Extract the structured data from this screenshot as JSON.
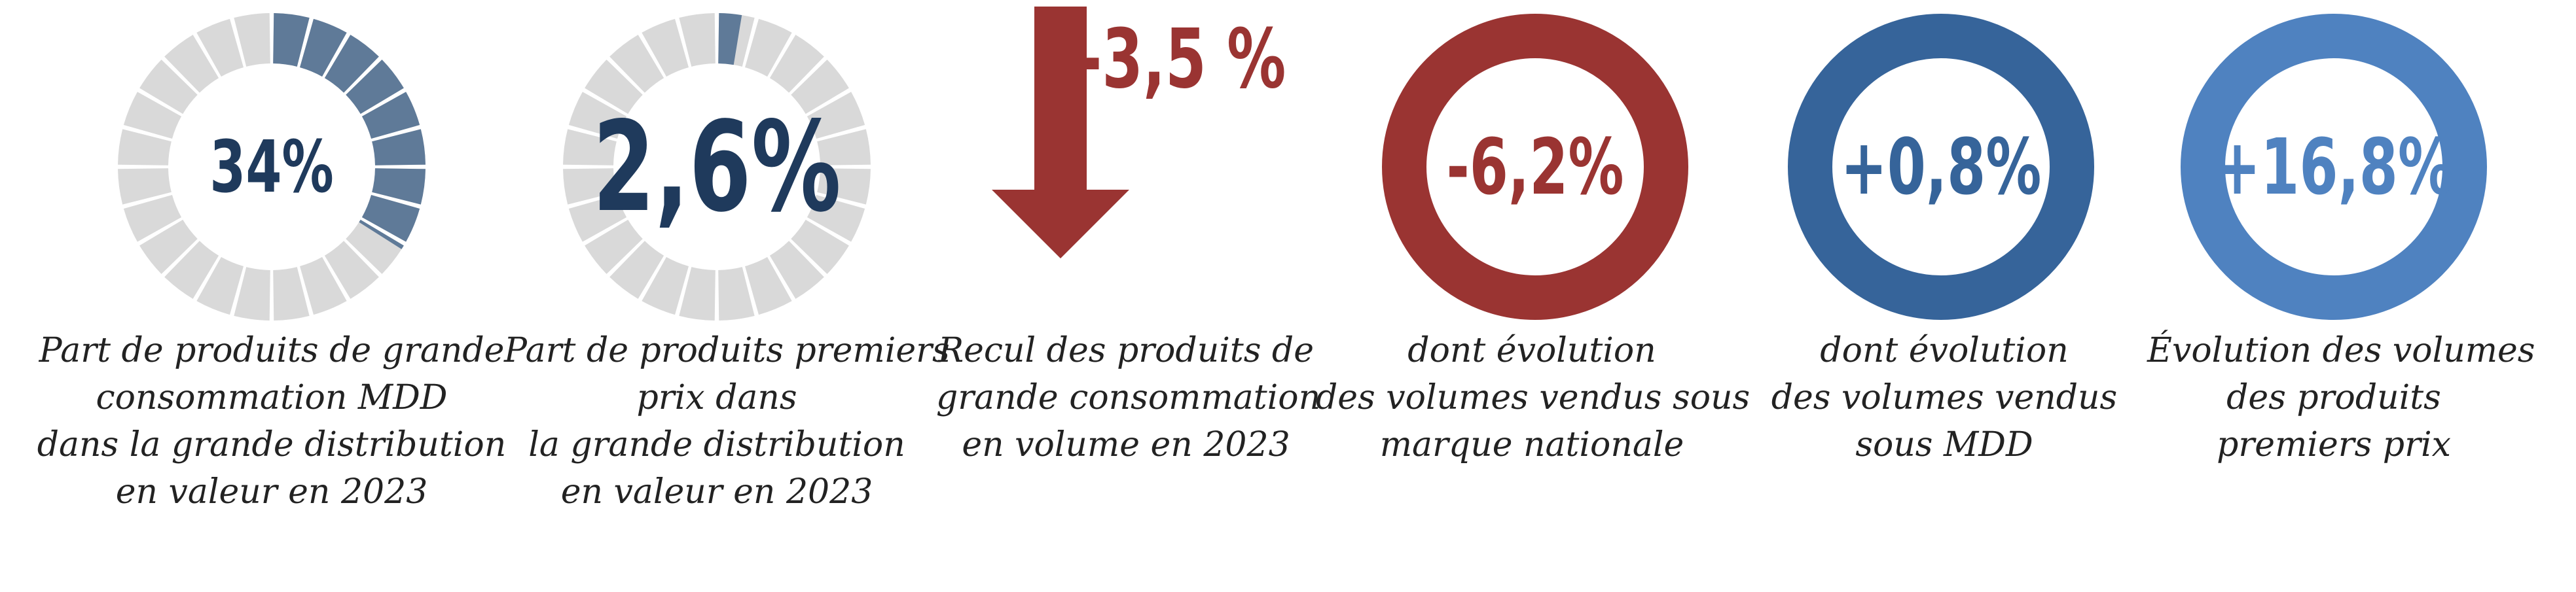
{
  "chart_data": [
    {
      "type": "donut-gauge",
      "value": "34%",
      "fraction": 0.34,
      "caption": [
        "Part de produits de grande",
        "consommation MDD",
        "dans la grande distribution",
        "en valeur en 2023"
      ]
    },
    {
      "type": "donut-gauge",
      "value": "2,6%",
      "fraction": 0.026,
      "caption": [
        "Part de produits premiers",
        "prix dans",
        "la grande distribution",
        "en valeur en 2023"
      ]
    },
    {
      "type": "arrow",
      "value": "-3,5 %",
      "caption": [
        "Recul des produits de",
        "grande consommation",
        "en volume en 2023"
      ]
    },
    {
      "type": "ring",
      "value": "-6,2%",
      "caption": [
        "dont évolution",
        "des volumes vendus sous",
        "marque nationale"
      ]
    },
    {
      "type": "ring",
      "value": "+0,8%",
      "caption": [
        "dont évolution",
        "des volumes vendus",
        "sous MDD"
      ]
    },
    {
      "type": "ring",
      "value": "+16,8%",
      "caption": [
        "Évolution des volumes",
        "des produits",
        "premiers prix"
      ]
    }
  ],
  "colors": {
    "gauge_fill": "#5f7a98",
    "gauge_empty": "#d9d9d9",
    "gauge_text": "#1f3a5c",
    "arrow": "#9a3432",
    "red_ring": "#9a3432",
    "dark_blue_ring": "#36649a",
    "light_blue_ring": "#4f82c0",
    "caption_text": "#222222"
  }
}
